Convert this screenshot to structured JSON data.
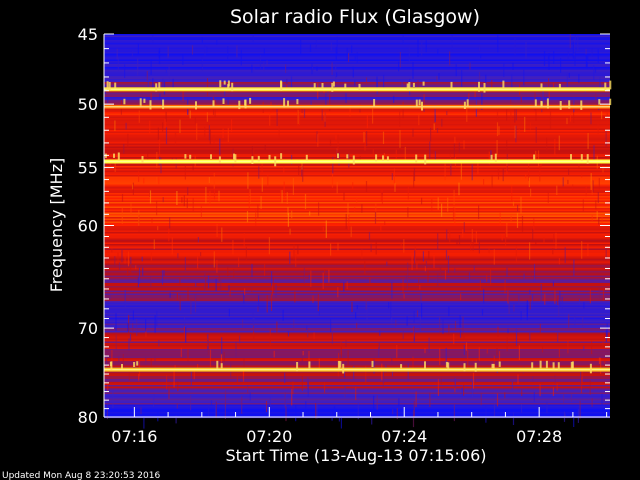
{
  "page": {
    "footer": "Updated Mon Aug  8 23:20:53 2016"
  },
  "chart_data": {
    "type": "heatmap",
    "title": "Solar radio Flux (Glasgow)",
    "xlabel": "Start Time (13-Aug-13 07:15:06)",
    "ylabel": "Frequency [MHz]",
    "x_ticks": [
      {
        "label": "07:16",
        "minutes_since_start": 0.9
      },
      {
        "label": "07:20",
        "minutes_since_start": 4.9
      },
      {
        "label": "07:24",
        "minutes_since_start": 8.9
      },
      {
        "label": "07:28",
        "minutes_since_start": 12.9
      }
    ],
    "xlim_minutes_since_start": [
      0,
      15
    ],
    "y_ticks": [
      45,
      50,
      55,
      60,
      70,
      80
    ],
    "ylim_mhz": [
      45,
      80
    ],
    "y_scale": "log",
    "y_inverted": true,
    "colormap": [
      "#1010f0",
      "#4020c0",
      "#c01010",
      "#ff2000",
      "#ff8000",
      "#ffff40"
    ],
    "bright_bands_mhz": [
      {
        "freq": 48.9,
        "intensity": 0.95
      },
      {
        "freq": 50.2,
        "intensity": 0.75
      },
      {
        "freq": 54.5,
        "intensity": 1.0
      },
      {
        "freq": 74.5,
        "intensity": 0.9
      }
    ],
    "spectrum_profile": [
      {
        "freq": 45.0,
        "level": 0.1
      },
      {
        "freq": 46.0,
        "level": 0.05
      },
      {
        "freq": 48.0,
        "level": 0.1
      },
      {
        "freq": 48.5,
        "level": 0.35
      },
      {
        "freq": 49.5,
        "level": 0.2
      },
      {
        "freq": 50.5,
        "level": 0.55
      },
      {
        "freq": 52.0,
        "level": 0.5
      },
      {
        "freq": 53.5,
        "level": 0.45
      },
      {
        "freq": 55.5,
        "level": 0.55
      },
      {
        "freq": 57.0,
        "level": 0.6
      },
      {
        "freq": 59.0,
        "level": 0.62
      },
      {
        "freq": 61.0,
        "level": 0.5
      },
      {
        "freq": 63.0,
        "level": 0.45
      },
      {
        "freq": 65.0,
        "level": 0.3
      },
      {
        "freq": 66.5,
        "level": 0.32
      },
      {
        "freq": 68.0,
        "level": 0.12
      },
      {
        "freq": 69.5,
        "level": 0.2
      },
      {
        "freq": 71.0,
        "level": 0.38
      },
      {
        "freq": 73.0,
        "level": 0.4
      },
      {
        "freq": 76.0,
        "level": 0.35
      },
      {
        "freq": 78.0,
        "level": 0.2
      },
      {
        "freq": 79.0,
        "level": 0.08
      },
      {
        "freq": 80.0,
        "level": 0.05
      }
    ]
  }
}
